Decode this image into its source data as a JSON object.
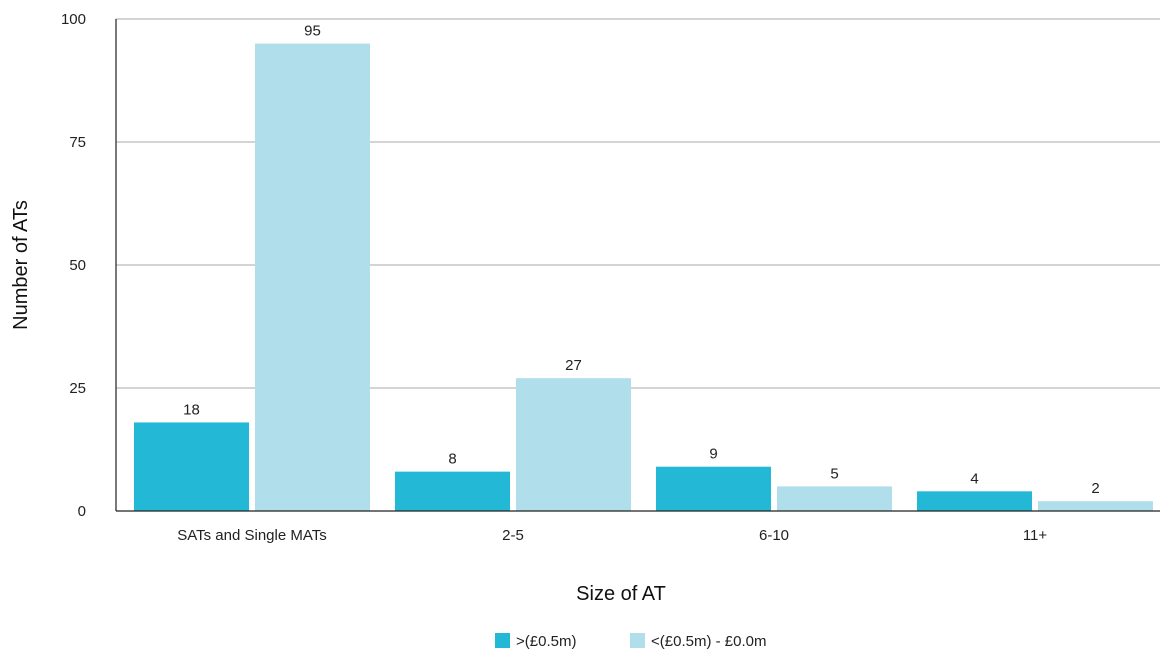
{
  "chart_data": {
    "type": "bar",
    "categories": [
      "SATs and Single MATs",
      "2-5",
      "6-10",
      "11+"
    ],
    "series": [
      {
        "name": ">(£0.5m)",
        "values": [
          18,
          8,
          9,
          4
        ],
        "color": "#22b8d6"
      },
      {
        "name": "<(£0.5m) - £0.0m",
        "values": [
          95,
          27,
          5,
          2
        ],
        "color": "#b0dfeb"
      }
    ],
    "title": "",
    "xlabel": "Size of AT",
    "ylabel": "Number of ATs",
    "ylim": [
      0,
      100
    ],
    "yticks": [
      0,
      25,
      50,
      75,
      100
    ],
    "grid": true,
    "legend": "bottom-center",
    "data_labels": true,
    "grid_color": "#a8a8a8",
    "axis_color": "#222222"
  }
}
